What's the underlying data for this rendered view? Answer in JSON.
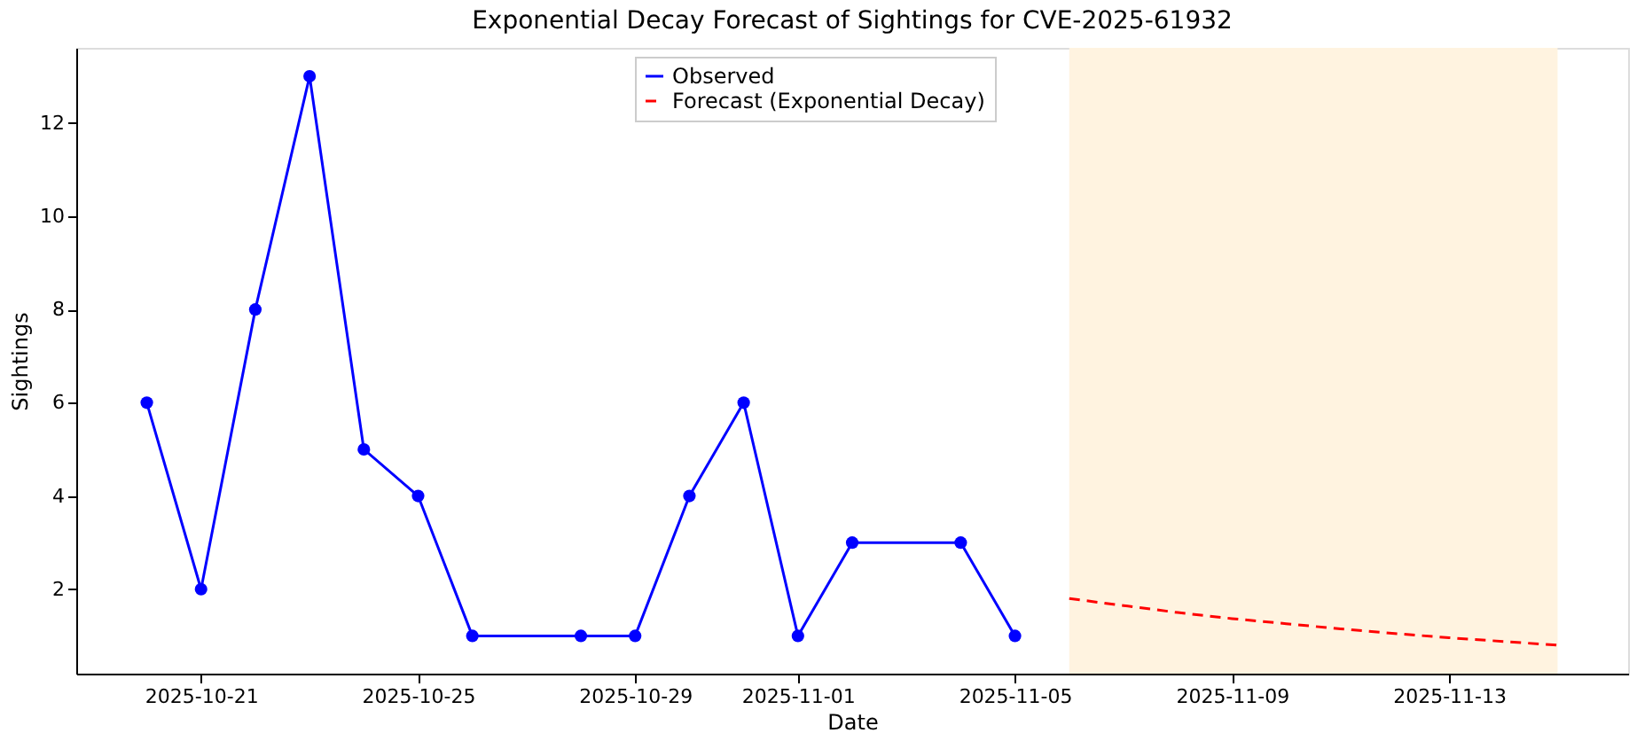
{
  "chart_data": {
    "type": "line",
    "title": "Exponential Decay Forecast of Sightings for CVE-2025-61932",
    "xlabel": "Date",
    "ylabel": "Sightings",
    "series": [
      {
        "name": "Observed",
        "color": "#0000ff",
        "marker": "circle",
        "line_style": "solid",
        "x": [
          "2025-10-20",
          "2025-10-21",
          "2025-10-22",
          "2025-10-23",
          "2025-10-24",
          "2025-10-25",
          "2025-10-26",
          "2025-10-28",
          "2025-10-29",
          "2025-10-30",
          "2025-10-31",
          "2025-11-01",
          "2025-11-02",
          "2025-11-04",
          "2025-11-05"
        ],
        "values": [
          6,
          2,
          8,
          13,
          5,
          4,
          1,
          1,
          1,
          4,
          6,
          1,
          3,
          3,
          1
        ]
      },
      {
        "name": "Forecast (Exponential Decay)",
        "color": "#ff0000",
        "marker": "none",
        "line_style": "dashed",
        "x": [
          "2025-11-06",
          "2025-11-07",
          "2025-11-08",
          "2025-11-09",
          "2025-11-10",
          "2025-11-11",
          "2025-11-12",
          "2025-11-13",
          "2025-11-14",
          "2025-11-15"
        ],
        "values": [
          1.8,
          1.65,
          1.5,
          1.37,
          1.26,
          1.15,
          1.05,
          0.96,
          0.88,
          0.8
        ]
      }
    ],
    "bands": [
      {
        "axis": "x",
        "from": "2025-11-06",
        "to": "2025-11-15",
        "color": "#fff3e0"
      }
    ],
    "xlim": [
      "2025-10-18T16:48",
      "2025-11-16T07:12"
    ],
    "xticks": [
      "2025-10-21",
      "2025-10-25",
      "2025-10-29",
      "2025-11-01",
      "2025-11-05",
      "2025-11-09",
      "2025-11-13"
    ],
    "ylim": [
      0.19,
      13.61
    ],
    "yticks": [
      2,
      4,
      6,
      8,
      10,
      12
    ],
    "grid": false,
    "legend": "top"
  }
}
